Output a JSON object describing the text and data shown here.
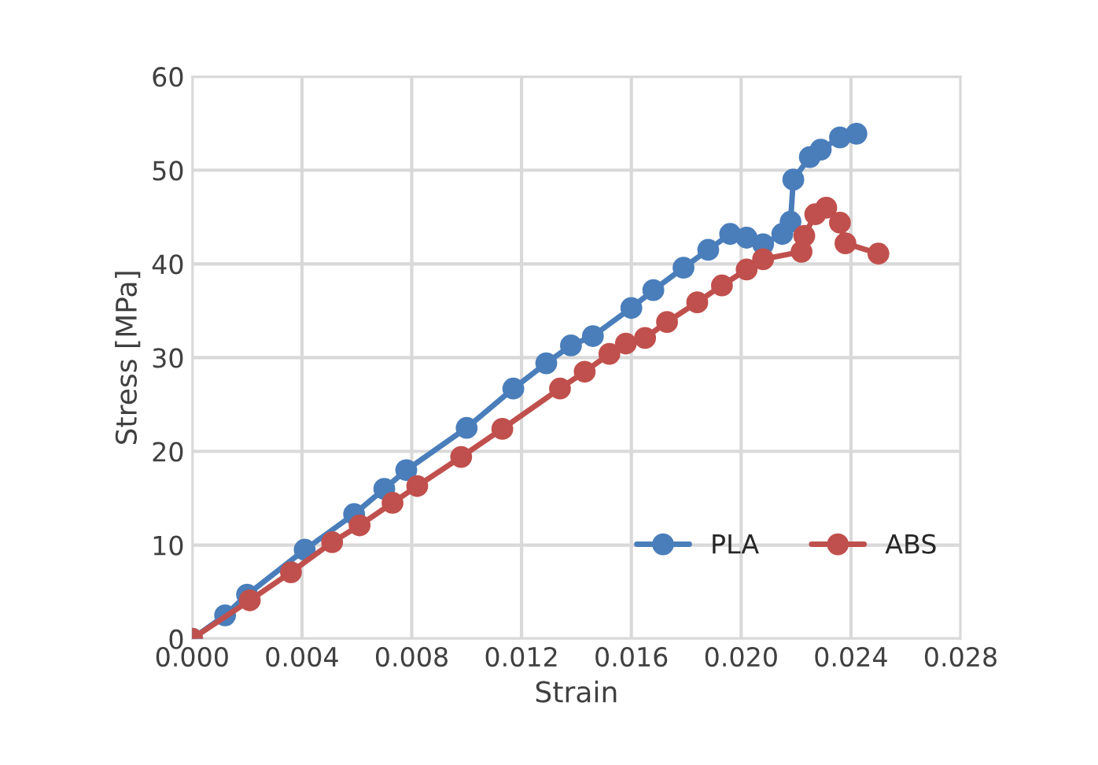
{
  "chart_data": {
    "type": "line",
    "xlabel": "Strain",
    "ylabel": "Stress [MPa]",
    "xlim": [
      0,
      0.028
    ],
    "ylim": [
      0,
      60
    ],
    "xticks": [
      {
        "value": 0,
        "label": "0.000"
      },
      {
        "value": 0.004,
        "label": "0.004"
      },
      {
        "value": 0.008,
        "label": "0.008"
      },
      {
        "value": 0.012,
        "label": "0.012"
      },
      {
        "value": 0.016,
        "label": "0.016"
      },
      {
        "value": 0.02,
        "label": "0.020"
      },
      {
        "value": 0.024,
        "label": "0.024"
      },
      {
        "value": 0.028,
        "label": "0.028"
      }
    ],
    "yticks": [
      0,
      10,
      20,
      30,
      40,
      50,
      60
    ],
    "grid": true,
    "legend": "lower right",
    "marker": "circle",
    "line_style": "solid",
    "series": [
      {
        "name": "PLA",
        "color": "#4a7ebb",
        "x": [
          0,
          0.0012,
          0.002,
          0.0041,
          0.0059,
          0.007,
          0.0078,
          0.01,
          0.0117,
          0.0129,
          0.0138,
          0.0146,
          0.016,
          0.0168,
          0.0179,
          0.0188,
          0.0196,
          0.0202,
          0.0208,
          0.0215,
          0.0218,
          0.0219,
          0.0225,
          0.0229,
          0.0236,
          0.0242
        ],
        "values": [
          0,
          2.5,
          4.7,
          9.5,
          13.3,
          16.0,
          18.0,
          22.5,
          26.7,
          29.4,
          31.3,
          32.3,
          35.3,
          37.2,
          39.6,
          41.5,
          43.2,
          42.8,
          42.1,
          43.2,
          44.5,
          49.0,
          51.4,
          52.2,
          53.5,
          53.9
        ]
      },
      {
        "name": "ABS",
        "color": "#c0504d",
        "x": [
          0,
          0.0021,
          0.0036,
          0.0051,
          0.0061,
          0.0073,
          0.0082,
          0.0098,
          0.0113,
          0.0134,
          0.0143,
          0.0152,
          0.0158,
          0.0165,
          0.0173,
          0.0184,
          0.0193,
          0.0202,
          0.0208,
          0.0222,
          0.0223,
          0.0227,
          0.0231,
          0.0236,
          0.0238,
          0.025
        ],
        "values": [
          0,
          4.1,
          7.1,
          10.3,
          12.1,
          14.5,
          16.3,
          19.4,
          22.4,
          26.7,
          28.5,
          30.4,
          31.5,
          32.1,
          33.8,
          35.9,
          37.7,
          39.4,
          40.5,
          41.3,
          43.0,
          45.3,
          46.0,
          44.4,
          42.2,
          41.1
        ]
      }
    ]
  }
}
